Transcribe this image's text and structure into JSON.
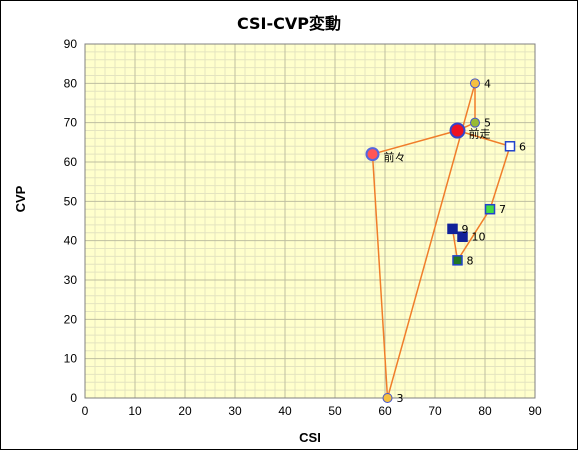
{
  "chart_data": {
    "type": "scatter",
    "title": "CSI-CVP変動",
    "xlabel": "CSI",
    "ylabel": "CVP",
    "xlim": [
      0,
      90
    ],
    "ylim": [
      0,
      90
    ],
    "x_ticks": [
      "0",
      "10",
      "20",
      "30",
      "40",
      "50",
      "60",
      "70",
      "80",
      "90"
    ],
    "y_ticks": [
      "0",
      "10",
      "20",
      "30",
      "40",
      "50",
      "60",
      "70",
      "80",
      "90"
    ],
    "grid": true,
    "plot_background": "#ffffcc",
    "major_grid_color": "#bfbfa0",
    "minor_grid_color": "#e4e4c0",
    "line_color": "#f07d2a",
    "path_order": [
      "前々",
      "前走",
      "5",
      "4",
      "3",
      "前々",
      "前走",
      "6",
      "7",
      "8",
      "9",
      "10"
    ],
    "points": [
      {
        "label": "前々",
        "x": 57.5,
        "y": 62,
        "marker": "circle-large",
        "fill": "#ff5555",
        "stroke": "#5566dd"
      },
      {
        "label": "前走",
        "x": 74.5,
        "y": 68,
        "marker": "circle-xlarge",
        "fill": "#ee1122",
        "stroke": "#3344cc"
      },
      {
        "label": "3",
        "x": 60.5,
        "y": 0,
        "marker": "circle",
        "fill": "#f5c040",
        "stroke": "#4455cc"
      },
      {
        "label": "4",
        "x": 78,
        "y": 80,
        "marker": "circle",
        "fill": "#f5c040",
        "stroke": "#4455cc"
      },
      {
        "label": "5",
        "x": 78,
        "y": 70,
        "marker": "circle",
        "fill": "#99bb33",
        "stroke": "#4455cc"
      },
      {
        "label": "6",
        "x": 85,
        "y": 64,
        "marker": "square",
        "fill": "#ffffff",
        "stroke": "#2244cc"
      },
      {
        "label": "7",
        "x": 81,
        "y": 48,
        "marker": "square",
        "fill": "#44dd44",
        "stroke": "#2244cc"
      },
      {
        "label": "8",
        "x": 74.5,
        "y": 35,
        "marker": "square",
        "fill": "#227722",
        "stroke": "#2244cc"
      },
      {
        "label": "9",
        "x": 73.5,
        "y": 43,
        "marker": "square",
        "fill": "#112299",
        "stroke": "#112299"
      },
      {
        "label": "10",
        "x": 75.5,
        "y": 41,
        "marker": "square",
        "fill": "#112299",
        "stroke": "#112299"
      }
    ]
  }
}
